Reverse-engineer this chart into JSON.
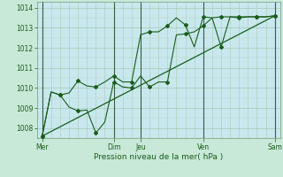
{
  "title": "Pression niveau de la mer( hPa )",
  "background_color": "#c8e8d8",
  "plot_bg": "#c8e8ee",
  "line_color": "#1a5c1a",
  "dark_vline_color": "#2a4a2a",
  "minor_vline_color": "#b8c8b8",
  "ylim": [
    1007.5,
    1014.3
  ],
  "xlim": [
    -0.3,
    13.3
  ],
  "yticks": [
    1008,
    1009,
    1010,
    1011,
    1012,
    1013,
    1014
  ],
  "xtick_labels_major": [
    "Mer",
    "Dim",
    "Jeu",
    "Ven",
    "Sam"
  ],
  "xtick_positions_major": [
    0,
    4,
    5.5,
    9,
    13
  ],
  "series1_x": [
    0,
    0.5,
    1.0,
    1.5,
    2.0,
    2.5,
    3.0,
    3.5,
    4.0,
    4.5,
    5.0,
    5.5,
    6.0,
    6.5,
    7.0,
    7.5,
    8.0,
    8.5,
    9.0,
    9.5,
    10.0,
    10.5,
    11.0,
    11.5,
    12.0,
    12.5,
    13.0
  ],
  "series1_y": [
    1007.6,
    1009.8,
    1009.65,
    1009.05,
    1008.85,
    1008.9,
    1007.75,
    1008.3,
    1010.3,
    1010.05,
    1010.0,
    1010.6,
    1010.05,
    1010.3,
    1010.3,
    1012.65,
    1012.7,
    1012.8,
    1013.1,
    1013.5,
    1012.05,
    1013.55,
    1013.5,
    1013.55,
    1013.55,
    1013.55,
    1013.6
  ],
  "series2_x": [
    0,
    0.5,
    1.0,
    1.5,
    2.0,
    2.5,
    3.0,
    3.5,
    4.0,
    4.5,
    5.0,
    5.5,
    6.0,
    6.5,
    7.0,
    7.5,
    8.0,
    8.5,
    9.0,
    9.5,
    10.0,
    10.5,
    11.0,
    11.5,
    12.0,
    12.5,
    13.0
  ],
  "series2_y": [
    1007.6,
    1009.8,
    1009.65,
    1009.75,
    1010.35,
    1010.1,
    1010.05,
    1010.3,
    1010.6,
    1010.3,
    1010.3,
    1012.65,
    1012.8,
    1012.8,
    1013.1,
    1013.5,
    1013.15,
    1012.05,
    1013.55,
    1013.5,
    1013.55,
    1013.55,
    1013.55,
    1013.55,
    1013.55,
    1013.55,
    1013.6
  ],
  "trend_x": [
    0,
    13.0
  ],
  "trend_y": [
    1007.6,
    1013.6
  ],
  "vline_major_x": [
    0,
    4,
    5.5,
    9,
    13
  ],
  "vline_minor_x": [
    0.5,
    1.0,
    1.5,
    2.0,
    2.5,
    3.0,
    3.5,
    4.5,
    5.0,
    6.0,
    6.5,
    7.0,
    7.5,
    8.0,
    8.5,
    9.5,
    10.0,
    10.5,
    11.0,
    11.5,
    12.0,
    12.5
  ]
}
